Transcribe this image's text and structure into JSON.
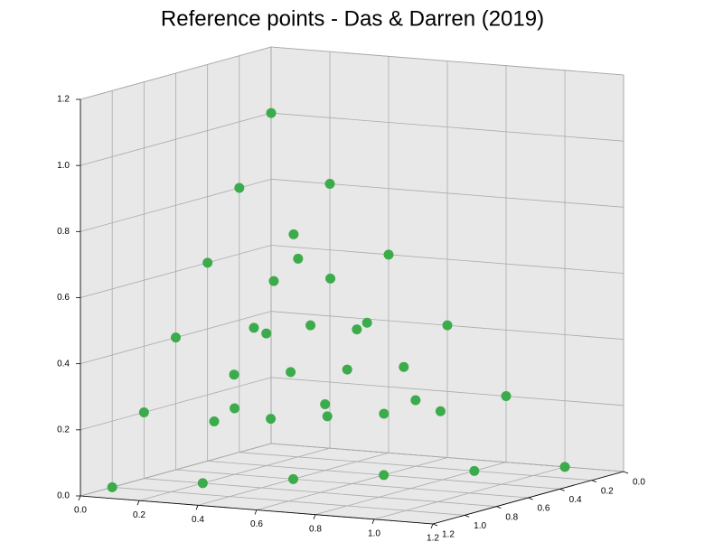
{
  "chart_data": {
    "type": "scatter3d",
    "title": "Reference points - Das & Darren (2019)",
    "color": "#3cab4b",
    "x": [
      0,
      0,
      0,
      0,
      0,
      0,
      0.2,
      0.2,
      0.2,
      0.2,
      0.2,
      0.4,
      0.4,
      0.4,
      0.4,
      0.6,
      0.6,
      0.6,
      0.8,
      0.8,
      1,
      0.167,
      0.167,
      0.167,
      0.167,
      0.167,
      0.292,
      0.292,
      0.292,
      0.292,
      0.417,
      0.417,
      0.417,
      0.542,
      0.542,
      0.667
    ],
    "y": [
      0,
      0.2,
      0.4,
      0.6,
      0.8,
      1,
      0,
      0.2,
      0.4,
      0.6,
      0.8,
      0,
      0.2,
      0.4,
      0.6,
      0,
      0.2,
      0.4,
      0,
      0.2,
      0,
      0.167,
      0.292,
      0.417,
      0.542,
      0.667,
      0.167,
      0.292,
      0.417,
      0.542,
      0.167,
      0.292,
      0.417,
      0.167,
      0.292,
      0.167
    ],
    "z": [
      1,
      0.8,
      0.6,
      0.4,
      0.2,
      0,
      0.8,
      0.6,
      0.4,
      0.2,
      0,
      0.6,
      0.4,
      0.2,
      0,
      0.4,
      0.2,
      0,
      0.2,
      0,
      0,
      0.667,
      0.542,
      0.417,
      0.292,
      0.167,
      0.542,
      0.417,
      0.292,
      0.167,
      0.417,
      0.292,
      0.167,
      0.292,
      0.167,
      0.167
    ],
    "xlim": [
      0,
      1.2
    ],
    "ylim": [
      0,
      1.2
    ],
    "zlim": [
      0,
      1.2
    ],
    "xticks": [
      {
        "value": 0,
        "label": "0.0"
      },
      0.2,
      0.4,
      0.6,
      0.8,
      {
        "value": 1,
        "label": "1.0"
      },
      1.2
    ],
    "yticks": [
      {
        "value": 0,
        "label": "0.0"
      },
      0.2,
      0.4,
      0.6,
      0.8,
      {
        "value": 1,
        "label": "1.0"
      },
      1.2
    ],
    "zticks": [
      {
        "value": 0,
        "label": "0.0"
      },
      0.2,
      0.4,
      0.6,
      0.8,
      {
        "value": 1,
        "label": "1.0"
      },
      1.2
    ],
    "grid": true
  }
}
